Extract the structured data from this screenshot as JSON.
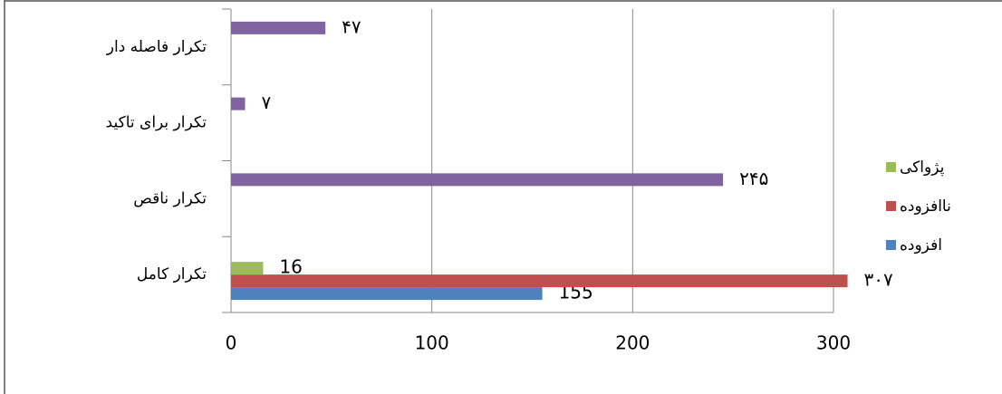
{
  "chart_data": {
    "type": "bar",
    "orientation": "horizontal",
    "categories": [
      "تکرار کامل",
      "تکرار ناقص",
      "تکرار برای تاکید",
      "تکرار فاصله دار"
    ],
    "series": [
      {
        "name": "افزوده",
        "color": "#4f81bd",
        "values": [
          155,
          null,
          null,
          null
        ]
      },
      {
        "name": "ناافزوده",
        "color": "#c0504d",
        "values": [
          307,
          null,
          null,
          null
        ],
        "value_labels": [
          "۳۰۷",
          null,
          null,
          null
        ]
      },
      {
        "name": "پژواکی",
        "color": "#9bbb59",
        "values": [
          16,
          null,
          null,
          null
        ]
      },
      {
        "color": "#8064a2",
        "values": [
          null,
          245,
          7,
          47
        ],
        "value_labels": [
          null,
          "۲۴۵",
          "۷",
          "۴۷"
        ]
      }
    ],
    "xlim": [
      0,
      300
    ],
    "xticks": [
      0,
      100,
      200,
      300
    ],
    "grid": true,
    "legend": "right"
  }
}
